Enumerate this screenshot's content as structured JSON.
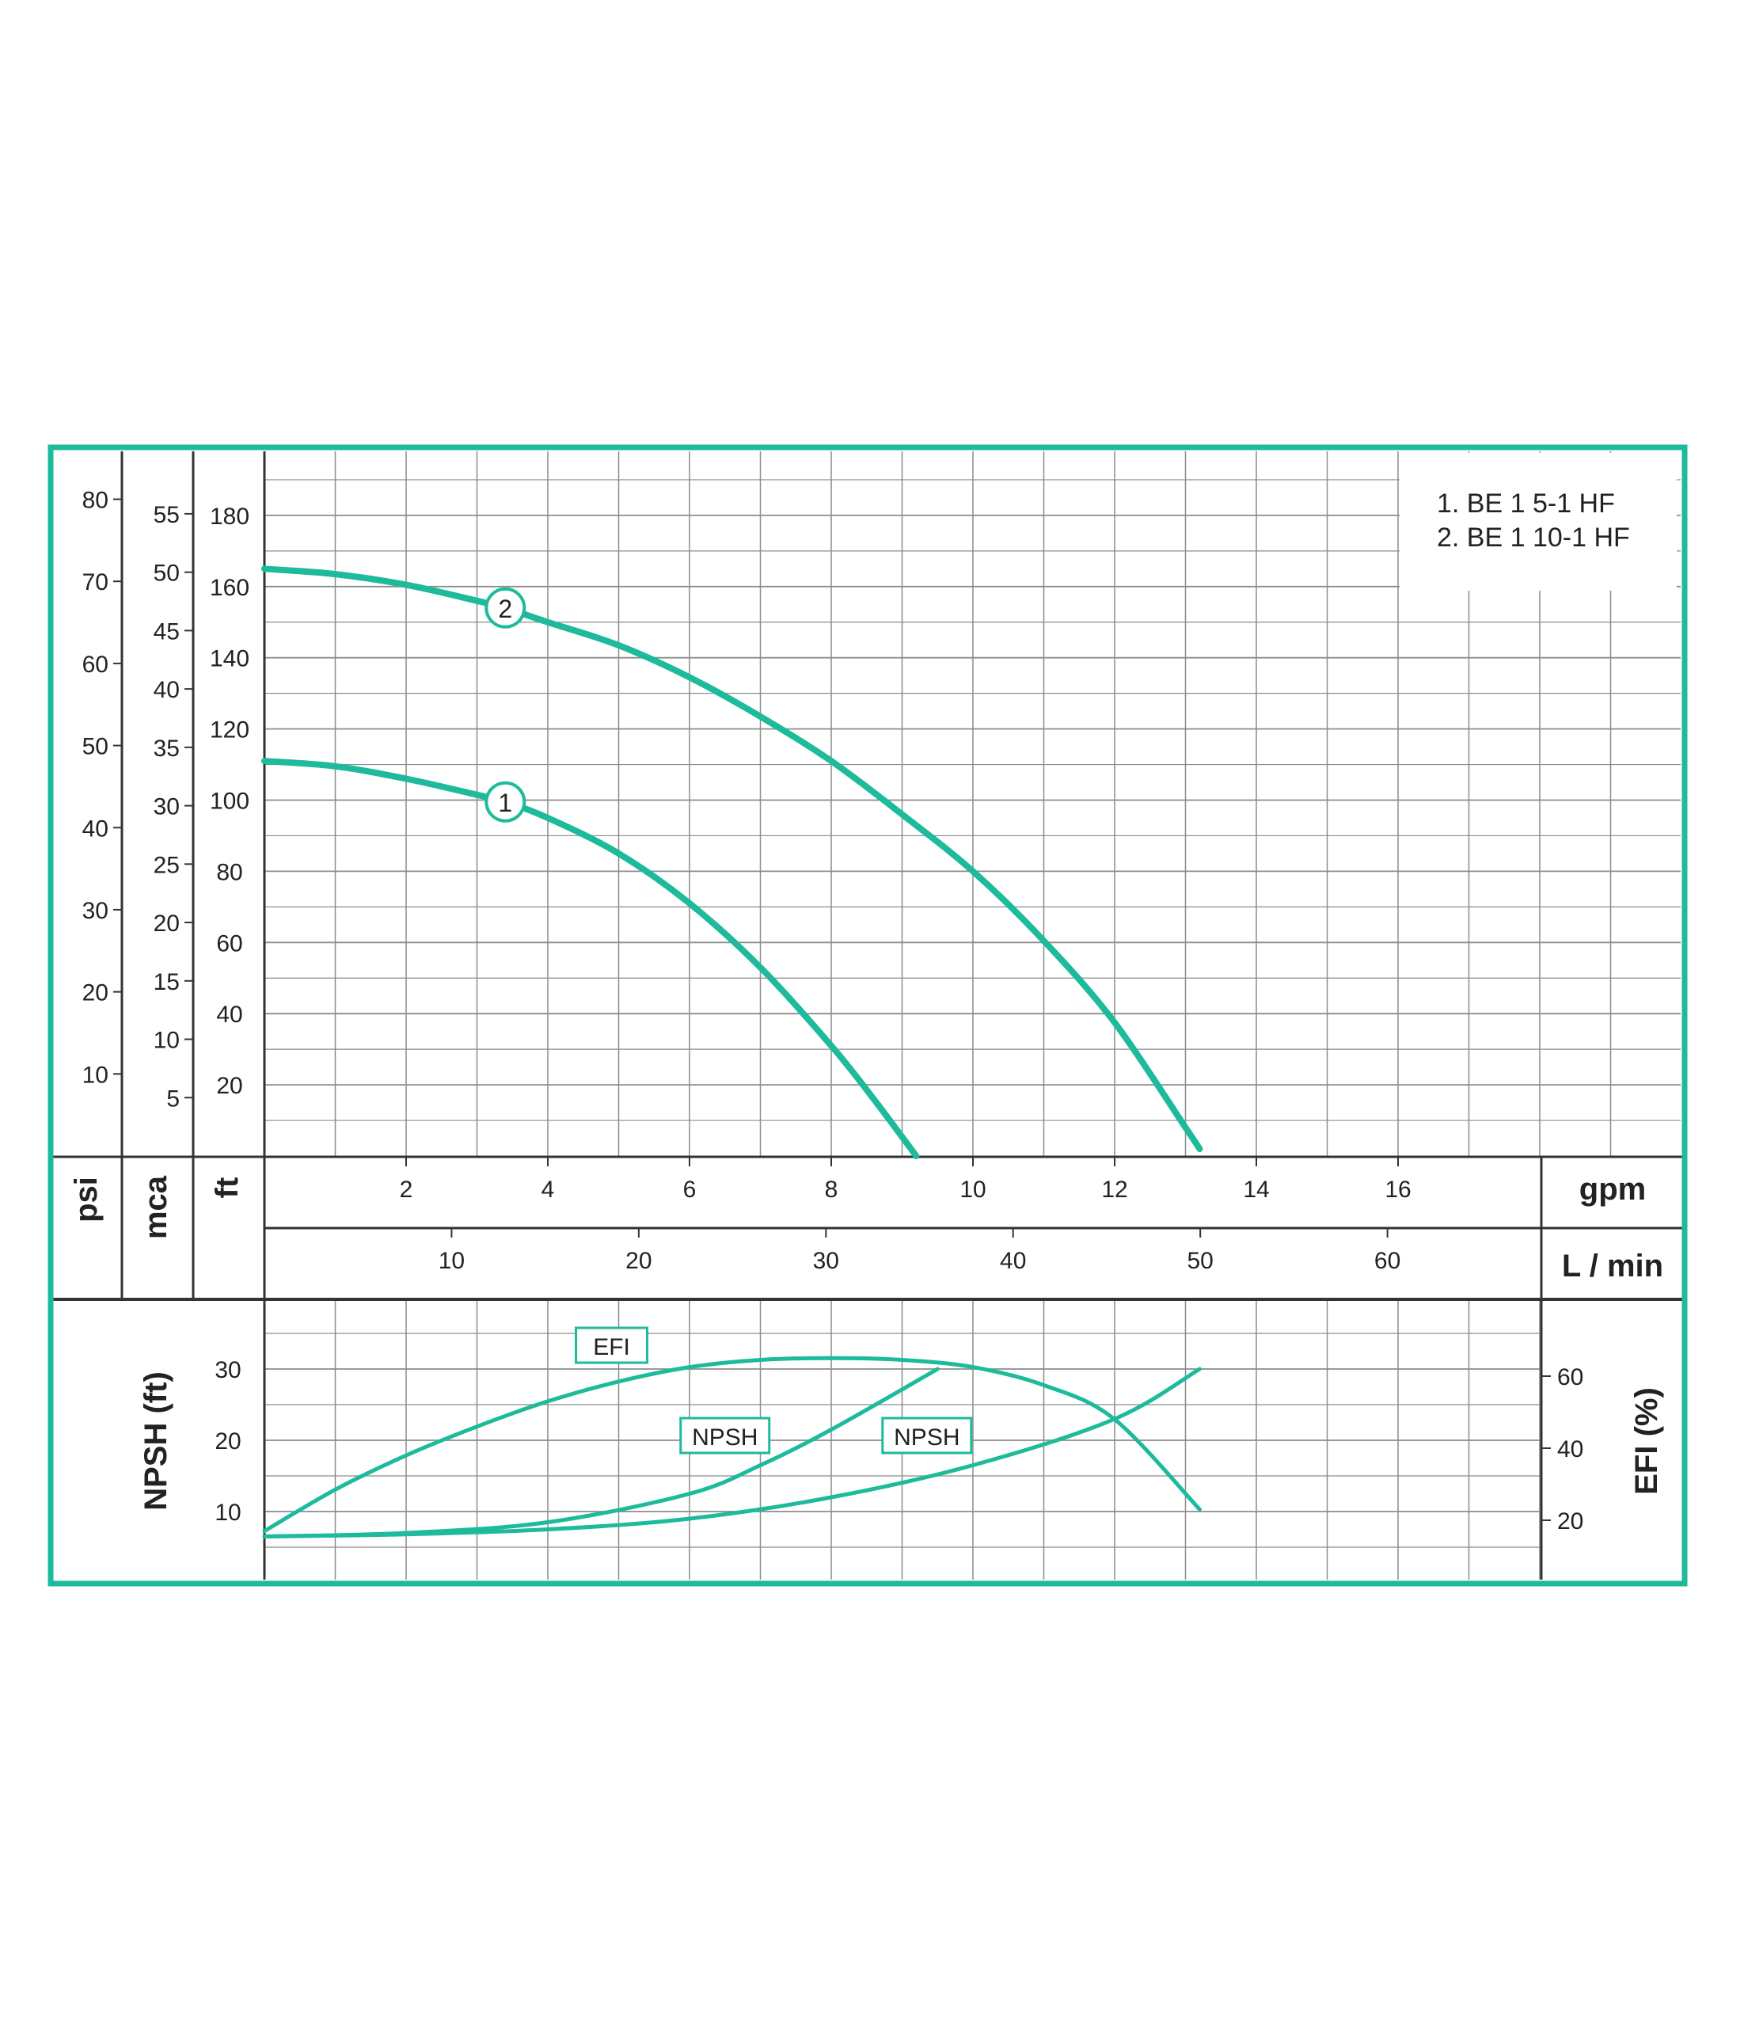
{
  "colors": {
    "frame": "#1dba9c",
    "curve": "#1dba9c",
    "grid": "#8c8c8c",
    "axis": "#333333",
    "text": "#222222"
  },
  "chart_data": [
    {
      "type": "line",
      "description_units": {
        "x_primary": "gpm",
        "x_secondary": "L / min",
        "y_axes": [
          "psi",
          "mca",
          "ft"
        ]
      },
      "x_units": {
        "primary_label": "gpm",
        "secondary_label": "L / min"
      },
      "y_axes": [
        {
          "label": "psi",
          "ticks": [
            10,
            20,
            30,
            40,
            50,
            60,
            70,
            80
          ]
        },
        {
          "label": "mca",
          "ticks": [
            5,
            10,
            15,
            20,
            25,
            30,
            35,
            40,
            45,
            50,
            55
          ]
        },
        {
          "label": "ft",
          "ticks": [
            20,
            40,
            60,
            80,
            100,
            120,
            140,
            160,
            180
          ]
        }
      ],
      "x_ticks_gpm": [
        2,
        4,
        6,
        8,
        10,
        12,
        14,
        16
      ],
      "x_ticks_lmin": [
        10,
        20,
        30,
        40,
        50,
        60
      ],
      "xlim_gpm": [
        0,
        18
      ],
      "ylim_ft": [
        0,
        198
      ],
      "grid": true,
      "legend": {
        "position": "top-right",
        "entries": [
          "1. BE 1 5-1 HF",
          "2. BE 1 10-1 HF"
        ]
      },
      "series": [
        {
          "marker_label": "1",
          "x": [
            0,
            1,
            2,
            3,
            3.4,
            4,
            5,
            6,
            7,
            8,
            8.6,
            9.2
          ],
          "y": [
            111,
            109.5,
            106,
            101.5,
            99.5,
            95,
            85,
            71,
            53,
            31,
            16,
            0
          ]
        },
        {
          "marker_label": "2",
          "x": [
            0,
            1,
            2,
            3,
            3.4,
            4,
            5,
            6,
            7,
            8,
            9,
            10,
            11,
            12,
            13,
            13.2
          ],
          "y": [
            165,
            163.5,
            160.5,
            156,
            154,
            150,
            143.5,
            134.5,
            123.5,
            111,
            96,
            80,
            60.5,
            37.5,
            8,
            2
          ]
        }
      ]
    },
    {
      "type": "line",
      "y_left": {
        "label": "NPSH (ft)",
        "ticks": [
          10,
          20,
          30
        ]
      },
      "y_right": {
        "label": "EFI (%)",
        "ticks": [
          20,
          40,
          60
        ]
      },
      "grid": true,
      "series": [
        {
          "label": "EFI",
          "axis": "right",
          "x_gpm": [
            0,
            1,
            2,
            3,
            4,
            5,
            6,
            7,
            8,
            9,
            10,
            11,
            12,
            13.2
          ],
          "y": [
            17,
            28.5,
            38,
            46,
            53,
            58.5,
            62.5,
            64.5,
            65,
            64.5,
            62.5,
            57.5,
            48,
            23
          ]
        },
        {
          "label": "NPSH",
          "axis": "left",
          "x_gpm": [
            0,
            2,
            4,
            6,
            7,
            8,
            9.5
          ],
          "y": [
            6.5,
            7,
            8.5,
            12.5,
            16.5,
            21.5,
            30
          ]
        },
        {
          "label": "NPSH",
          "axis": "left",
          "x_gpm": [
            0,
            2,
            4,
            6,
            8,
            10,
            12,
            13.2
          ],
          "y": [
            6.5,
            6.8,
            7.5,
            9,
            12,
            16.5,
            23,
            30
          ]
        }
      ]
    }
  ]
}
